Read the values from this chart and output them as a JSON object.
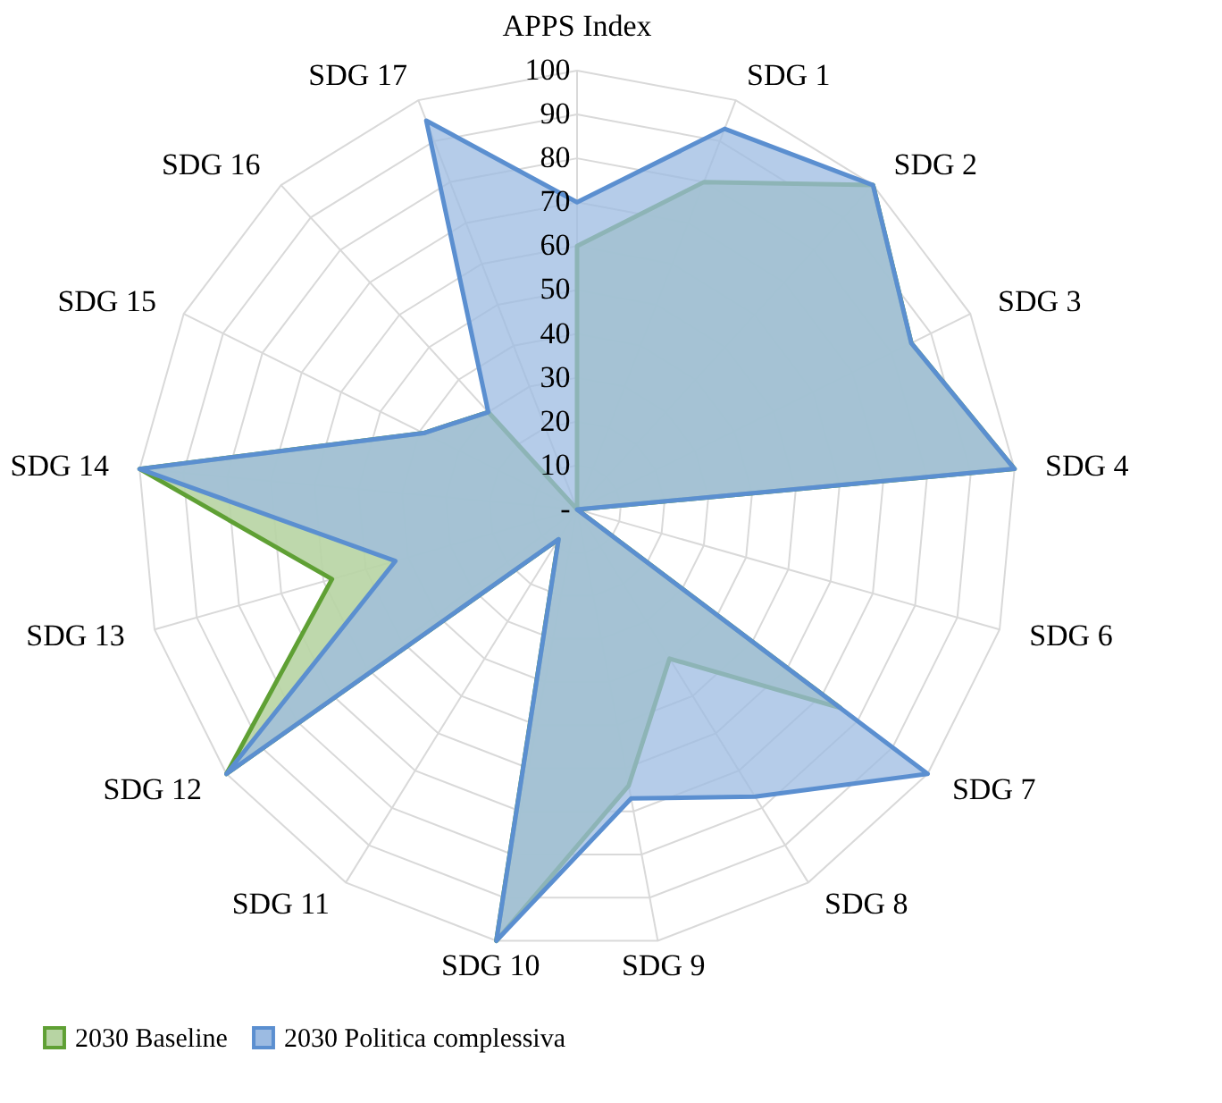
{
  "chart_data": {
    "type": "radar",
    "categories": [
      "APPS Index",
      "SDG 1",
      "SDG 2",
      "SDG 3",
      "SDG 4",
      "SDG 6",
      "SDG 7",
      "SDG 8",
      "SDG 9",
      "SDG 10",
      "SDG 11",
      "SDG 12",
      "SDG 13",
      "SDG 14",
      "SDG 15",
      "SDG 16",
      "SDG 17"
    ],
    "ylim": [
      0,
      100
    ],
    "yticks": [
      {
        "value": 0,
        "label": "-"
      },
      10,
      20,
      30,
      40,
      50,
      60,
      70,
      80,
      90,
      100
    ],
    "grid": true,
    "legend": "bottom",
    "series": [
      {
        "name": "2030 Baseline",
        "color": "#5fa034",
        "values": [
          60,
          80,
          100,
          85,
          100,
          0,
          75,
          40,
          64,
          100,
          8,
          100,
          58,
          100,
          39,
          30,
          0
        ]
      },
      {
        "name": "2030 Politica complessiva",
        "color": "#5b8fd0",
        "values": [
          70,
          93,
          100,
          85,
          100,
          0,
          100,
          77,
          67,
          100,
          8,
          100,
          43,
          100,
          39,
          30,
          95
        ]
      }
    ]
  }
}
